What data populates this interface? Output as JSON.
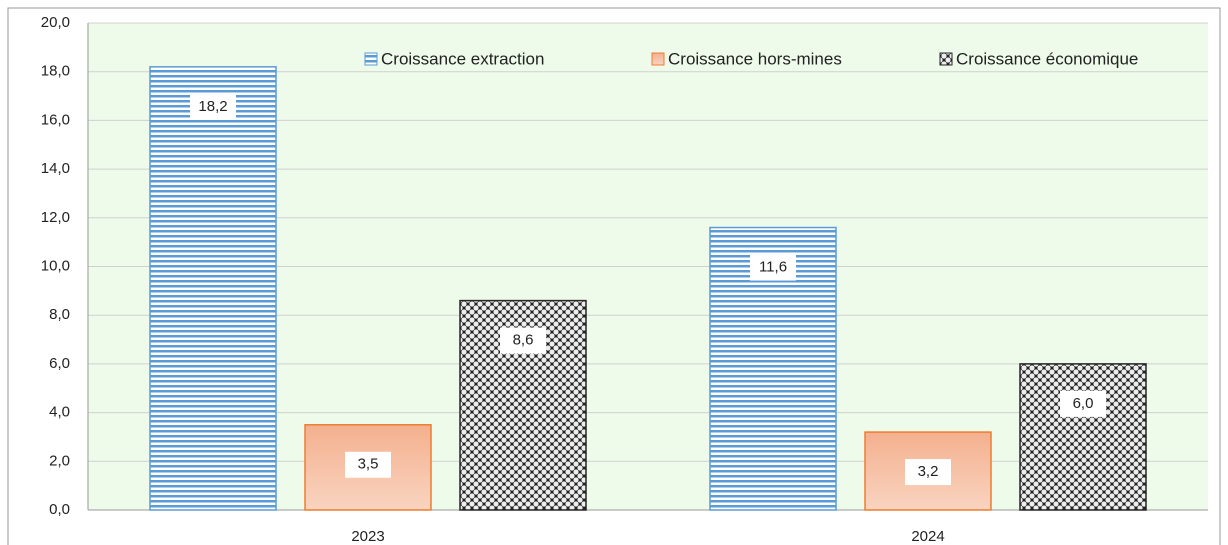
{
  "chart_data": {
    "type": "bar",
    "categories": [
      "2023",
      "2024"
    ],
    "series": [
      {
        "name": "Croissance extraction",
        "color": "#5b9bd5",
        "pattern": "horizontal-lines",
        "values": [
          18.2,
          11.6
        ],
        "value_labels": [
          "18,2",
          "11,6"
        ]
      },
      {
        "name": "Croissance hors-mines",
        "color": "#ed7d31",
        "pattern": "gradient",
        "values": [
          3.5,
          3.2
        ],
        "value_labels": [
          "3,5",
          "3,2"
        ]
      },
      {
        "name": "Croissance économique",
        "color": "#262626",
        "pattern": "checker",
        "values": [
          8.6,
          6.0
        ],
        "value_labels": [
          "8,6",
          "6,0"
        ]
      }
    ],
    "ylim": [
      0,
      20
    ],
    "yticks": [
      {
        "value": 0,
        "label": "0,0"
      },
      {
        "value": 2,
        "label": "2,0"
      },
      {
        "value": 4,
        "label": "4,0"
      },
      {
        "value": 6,
        "label": "6,0"
      },
      {
        "value": 8,
        "label": "8,0"
      },
      {
        "value": 10,
        "label": "10,0"
      },
      {
        "value": 12,
        "label": "12,0"
      },
      {
        "value": 14,
        "label": "14,0"
      },
      {
        "value": 16,
        "label": "16,0"
      },
      {
        "value": 18,
        "label": "18,0"
      },
      {
        "value": 20,
        "label": "20,0"
      }
    ],
    "grid": true,
    "legend": "top"
  }
}
